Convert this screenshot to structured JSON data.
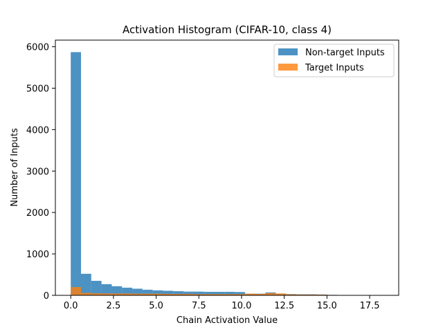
{
  "chart_data": {
    "type": "histogram",
    "title": "Activation Histogram (CIFAR-10, class 4)",
    "xlabel": "Chain Activation Value",
    "ylabel": "Number of Inputs",
    "xlim": [
      -0.9,
      19.2
    ],
    "ylim": [
      0,
      6160
    ],
    "xticks": [
      0.0,
      2.5,
      5.0,
      7.5,
      10.0,
      12.5,
      15.0,
      17.5
    ],
    "xtick_labels": [
      "0.0",
      "2.5",
      "5.0",
      "7.5",
      "10.0",
      "12.5",
      "15.0",
      "17.5"
    ],
    "yticks": [
      0,
      1000,
      2000,
      3000,
      4000,
      5000,
      6000
    ],
    "ytick_labels": [
      "0",
      "1000",
      "2000",
      "3000",
      "4000",
      "5000",
      "6000"
    ],
    "grid": false,
    "legend_position": "top-right",
    "series": [
      {
        "name": "Non-target Inputs",
        "color": "#1f77b4",
        "alpha": 0.8,
        "bin_start": 0.0,
        "bin_width": 0.6,
        "counts": [
          5870,
          520,
          350,
          270,
          220,
          185,
          160,
          135,
          120,
          110,
          100,
          90,
          90,
          85,
          85,
          85,
          80,
          40,
          40,
          70,
          40,
          30,
          25,
          25,
          20,
          10,
          5,
          0,
          0,
          0,
          0
        ]
      },
      {
        "name": "Target Inputs",
        "color": "#ff7f0e",
        "alpha": 0.8,
        "bin_start": 0.0,
        "bin_width": 0.6,
        "counts": [
          200,
          60,
          50,
          45,
          45,
          45,
          40,
          40,
          40,
          35,
          35,
          35,
          30,
          30,
          30,
          30,
          30,
          40,
          35,
          55,
          45,
          25,
          20,
          20,
          15,
          10,
          5,
          0,
          0,
          0,
          3
        ]
      }
    ]
  }
}
